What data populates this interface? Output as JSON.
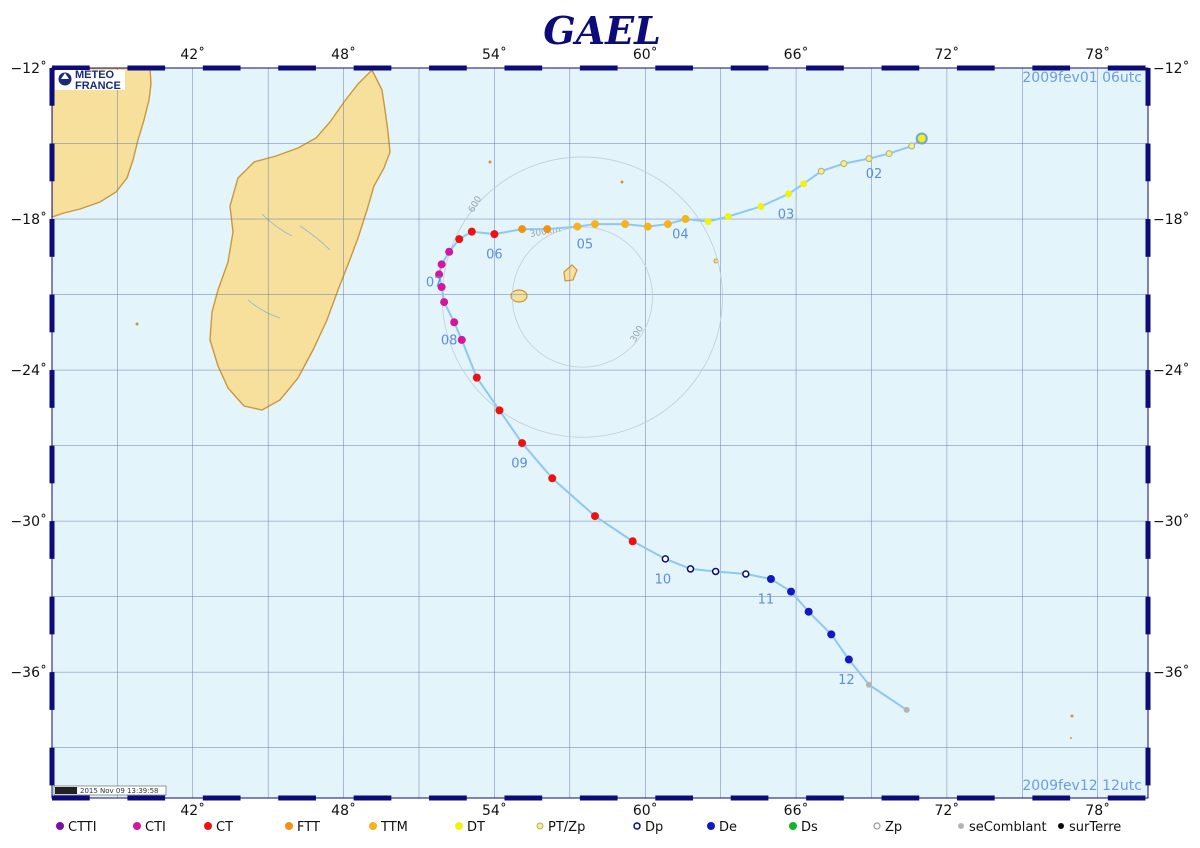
{
  "title": "GAEL",
  "logo": {
    "line1": "METEO",
    "line2": "FRANCE"
  },
  "start_date": "2009fev01  06utc",
  "end_date": "2009fev12  12utc",
  "stamp_text": "2015 Nov 09 13:39:58",
  "map_extent": {
    "lon": [
      36.4,
      80.0
    ],
    "lat": [
      -12.0,
      -41.0
    ]
  },
  "lon_ticks": [
    42,
    48,
    54,
    60,
    66,
    72,
    78
  ],
  "lat_ticks": [
    -12,
    -18,
    -24,
    -30,
    -36
  ],
  "lon_tick_labels": [
    "42˚",
    "48˚",
    "54˚",
    "60˚",
    "66˚",
    "72˚",
    "78˚"
  ],
  "lat_tick_labels": [
    "−12˚",
    "−18˚",
    "−24˚",
    "−30˚",
    "−36˚"
  ],
  "colors": {
    "ocean": "#e4f4fb",
    "land": "#f7df9c",
    "coast": "#c9983c",
    "grid": "#6b7fa8",
    "track": "#8ec8f0",
    "frame_dash": "#0b0b7a"
  },
  "rings": {
    "center": [
      57.5,
      -21.1
    ],
    "radii_km": [
      300,
      600
    ],
    "labels": [
      "300km",
      "600",
      "300"
    ]
  },
  "track": [
    {
      "lon": 71.0,
      "lat": -14.8,
      "cat": "start"
    },
    {
      "lon": 70.6,
      "lat": -15.1,
      "cat": "PT/Zp"
    },
    {
      "lon": 69.7,
      "lat": -15.4,
      "cat": "PT/Zp"
    },
    {
      "lon": 68.9,
      "lat": -15.6,
      "cat": "PT/Zp"
    },
    {
      "lon": 67.9,
      "lat": -15.8,
      "cat": "PT/Zp"
    },
    {
      "lon": 67.0,
      "lat": -16.1,
      "cat": "PT/Zp"
    },
    {
      "lon": 66.3,
      "lat": -16.6,
      "cat": "DT"
    },
    {
      "lon": 65.7,
      "lat": -17.0,
      "cat": "DT"
    },
    {
      "lon": 64.6,
      "lat": -17.5,
      "cat": "DT"
    },
    {
      "lon": 63.3,
      "lat": -17.9,
      "cat": "DT"
    },
    {
      "lon": 62.5,
      "lat": -18.1,
      "cat": "DT"
    },
    {
      "lon": 61.6,
      "lat": -18.0,
      "cat": "TTM"
    },
    {
      "lon": 60.9,
      "lat": -18.2,
      "cat": "TTM"
    },
    {
      "lon": 60.1,
      "lat": -18.3,
      "cat": "TTM"
    },
    {
      "lon": 59.2,
      "lat": -18.2,
      "cat": "TTM"
    },
    {
      "lon": 58.0,
      "lat": -18.2,
      "cat": "TTM"
    },
    {
      "lon": 57.3,
      "lat": -18.3,
      "cat": "TTM"
    },
    {
      "lon": 56.1,
      "lat": -18.4,
      "cat": "FTT"
    },
    {
      "lon": 55.1,
      "lat": -18.4,
      "cat": "FTT"
    },
    {
      "lon": 54.0,
      "lat": -18.6,
      "cat": "CT"
    },
    {
      "lon": 53.1,
      "lat": -18.5,
      "cat": "CT"
    },
    {
      "lon": 52.6,
      "lat": -18.8,
      "cat": "CT"
    },
    {
      "lon": 52.2,
      "lat": -19.3,
      "cat": "CTI"
    },
    {
      "lon": 51.9,
      "lat": -19.8,
      "cat": "CTI"
    },
    {
      "lon": 51.8,
      "lat": -20.2,
      "cat": "CTI"
    },
    {
      "lon": 51.9,
      "lat": -20.7,
      "cat": "CTI"
    },
    {
      "lon": 52.0,
      "lat": -21.3,
      "cat": "CTI"
    },
    {
      "lon": 52.4,
      "lat": -22.1,
      "cat": "CTI"
    },
    {
      "lon": 52.7,
      "lat": -22.8,
      "cat": "CTI"
    },
    {
      "lon": 53.3,
      "lat": -24.3,
      "cat": "CT"
    },
    {
      "lon": 54.2,
      "lat": -25.6,
      "cat": "CT"
    },
    {
      "lon": 55.1,
      "lat": -26.9,
      "cat": "CT"
    },
    {
      "lon": 56.3,
      "lat": -28.3,
      "cat": "CT"
    },
    {
      "lon": 58.0,
      "lat": -29.8,
      "cat": "CT"
    },
    {
      "lon": 59.5,
      "lat": -30.8,
      "cat": "CT"
    },
    {
      "lon": 60.8,
      "lat": -31.5,
      "cat": "Dp"
    },
    {
      "lon": 61.8,
      "lat": -31.9,
      "cat": "Dp"
    },
    {
      "lon": 62.8,
      "lat": -32.0,
      "cat": "Dp"
    },
    {
      "lon": 64.0,
      "lat": -32.1,
      "cat": "Dp"
    },
    {
      "lon": 65.0,
      "lat": -32.3,
      "cat": "De"
    },
    {
      "lon": 65.8,
      "lat": -32.8,
      "cat": "De"
    },
    {
      "lon": 66.5,
      "lat": -33.6,
      "cat": "De"
    },
    {
      "lon": 67.4,
      "lat": -34.5,
      "cat": "De"
    },
    {
      "lon": 68.1,
      "lat": -35.5,
      "cat": "De"
    },
    {
      "lon": 68.9,
      "lat": -36.5,
      "cat": "seComblant"
    },
    {
      "lon": 70.4,
      "lat": -37.5,
      "cat": "seComblant"
    }
  ],
  "day_labels": [
    {
      "text": "02",
      "lon": 69.1,
      "lat": -15.9
    },
    {
      "text": "03",
      "lon": 65.6,
      "lat": -17.5
    },
    {
      "text": "04",
      "lon": 61.4,
      "lat": -18.3
    },
    {
      "text": "05",
      "lon": 57.6,
      "lat": -18.7
    },
    {
      "text": "06",
      "lon": 54.0,
      "lat": -19.1
    },
    {
      "text": "07",
      "lon": 51.6,
      "lat": -20.2
    },
    {
      "text": "08",
      "lon": 52.2,
      "lat": -22.5
    },
    {
      "text": "09",
      "lon": 55.0,
      "lat": -27.4
    },
    {
      "text": "10",
      "lon": 60.7,
      "lat": -32.0
    },
    {
      "text": "11",
      "lon": 64.8,
      "lat": -32.8
    },
    {
      "text": "12",
      "lon": 68.0,
      "lat": -36.0
    }
  ],
  "legend": [
    {
      "label": "CTTI",
      "color": "#7a0fa8",
      "style": "filled"
    },
    {
      "label": "CTI",
      "color": "#d4169c",
      "style": "filled"
    },
    {
      "label": "CT",
      "color": "#ee1111",
      "style": "filled"
    },
    {
      "label": "FTT",
      "color": "#f39212",
      "style": "filled"
    },
    {
      "label": "TTM",
      "color": "#f7b21c",
      "style": "filled"
    },
    {
      "label": "DT",
      "color": "#f4f10e",
      "style": "filled"
    },
    {
      "label": "PT/Zp",
      "color": "#eeee9a",
      "style": "ring-yellow"
    },
    {
      "label": "Dp",
      "color": "#ffffff",
      "style": "ring-navy"
    },
    {
      "label": "De",
      "color": "#1018c4",
      "style": "filled"
    },
    {
      "label": "Ds",
      "color": "#14b428",
      "style": "filled"
    },
    {
      "label": "Zp",
      "color": "#ffffff",
      "style": "ring-grey"
    },
    {
      "label": "seComblant",
      "color": "#b4b4b4",
      "style": "filled"
    },
    {
      "label": "surTerre",
      "color": "#080808",
      "style": "filled"
    }
  ]
}
